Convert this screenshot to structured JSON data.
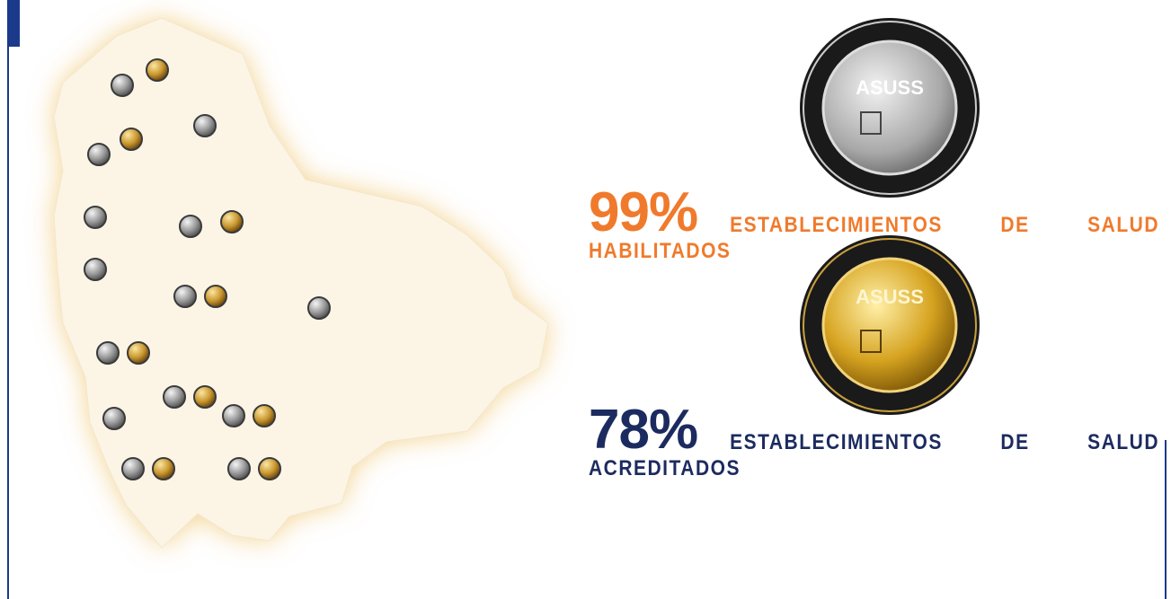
{
  "medals": [
    "ASUSS",
    "ASUSS"
  ],
  "stats": [
    {
      "percent": "99%",
      "lines": [
        "ESTABLECIMIENTOS DE SALUD",
        "HABILITADOS"
      ]
    },
    {
      "percent": "78%",
      "lines": [
        "ESTABLECIMIENTOS DE SALUD",
        "ACREDITADOS"
      ]
    }
  ]
}
